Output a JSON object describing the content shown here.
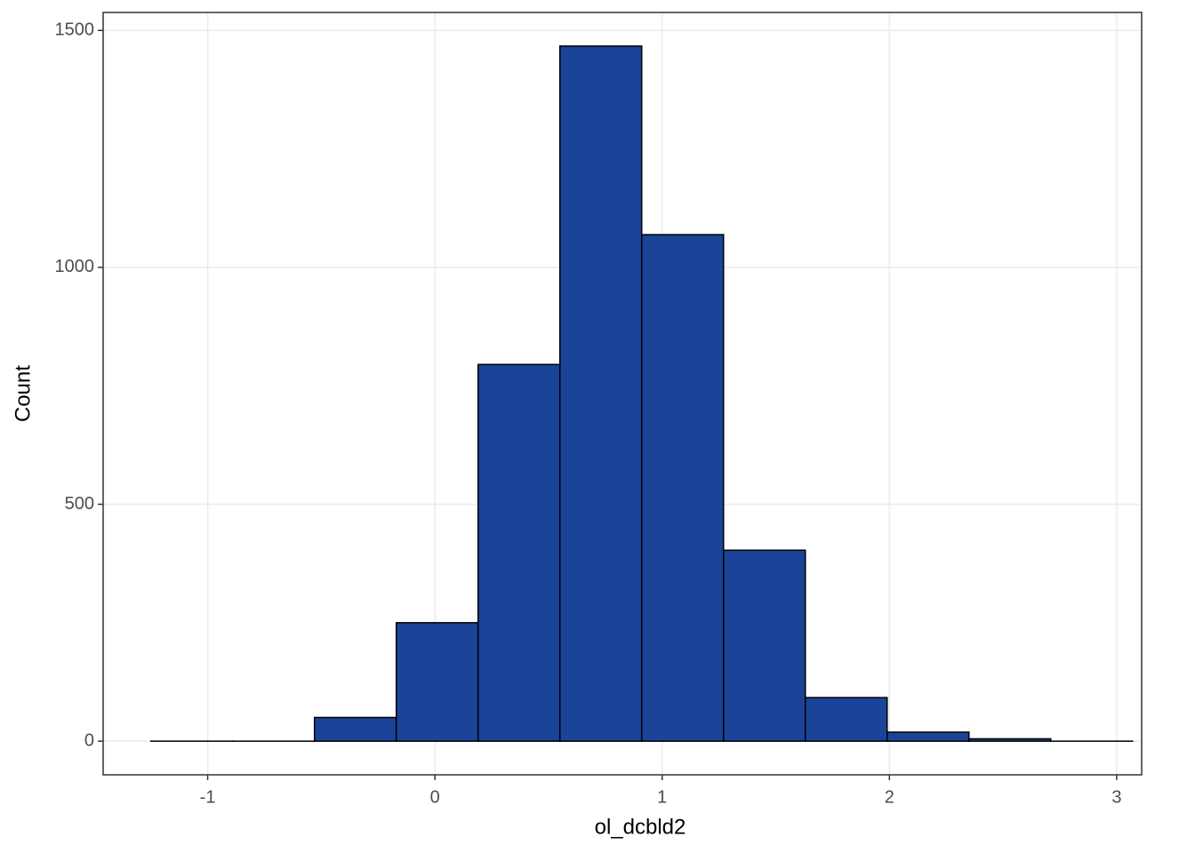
{
  "chart_data": {
    "type": "histogram",
    "x_label": "ol_dcbld2",
    "y_label": "Count",
    "bins": [
      -1.25,
      -0.89,
      -0.53,
      -0.17,
      0.19,
      0.55,
      0.91,
      1.27,
      1.63,
      1.99,
      2.35,
      2.71,
      3.07
    ],
    "counts": [
      0,
      0,
      50,
      250,
      795,
      1467,
      1069,
      403,
      92,
      19,
      5,
      0
    ],
    "color": "#1a4499",
    "edge_color": "#000000",
    "xlim": [
      -1.46,
      3.11
    ],
    "xticks": [
      -1,
      0,
      1,
      2,
      3
    ],
    "ylim": [
      -71,
      1538
    ],
    "yticks": [
      0,
      500,
      1000,
      1500
    ],
    "grid": true
  }
}
